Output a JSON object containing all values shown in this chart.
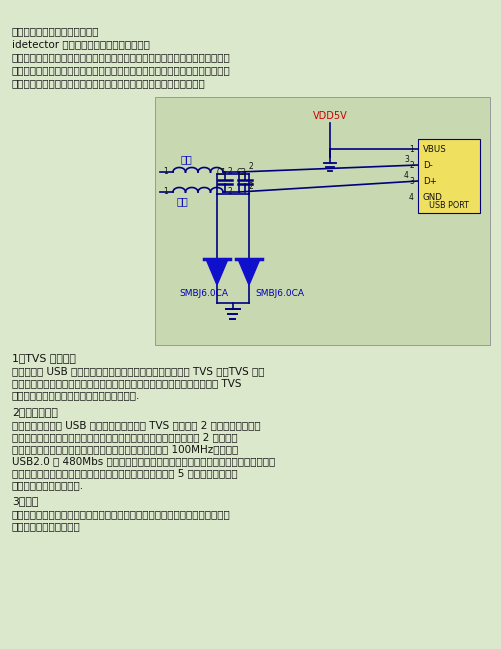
{
  "bg_color": "#dce8cc",
  "circuit_bg": "#c8d8b0",
  "vdd_color": "#cc0000",
  "usb_box_color": "#f0e060",
  "lc": "#000080",
  "tvs_color": "#1010cc",
  "label_color": "#0000bb",
  "text_color": "#111111",
  "title_line1": "大家来找茬，被误用的保护器件",
  "title_line2": "idetector 博客中的一篇好文，转了过来。",
  "intro_lines": [
    "以前公司小的时候，硬件开发工程师经验也不高，基本上产品是在裸奔。没有加",
    "任何防护。现在公司大了，工程师有了点经验了，却出现了另一种误用保护器件",
    "的情况。最近评审了一个原理图，这仅就保护器件来看看有哪些误用。"
  ],
  "s1_title": "1、TVS 管的误用",
  "s1_lines": [
    "上图是一个 USB 口的防护电路。这个电路中首先误用的就是 TVS 管。TVS 管作",
    "为一种防护器件被广泛应用于防止过电压保护。此处的的设计思想也是想用 TVS",
    "管来作为放静电的一种器件。但是这里用错了."
  ],
  "s2_title": "2、磁珠的误用",
  "s2_lines": [
    "还是看上面的那个 USB 口的防护电路图。在 TVS 后面还有 2 个磁珠。磁珠主要",
    "用于抑制高频干扰。但是当看到这个磁珠时，我们需要问设计者，这 2 个磁珠是",
    "什么型号的。得知型号后，发现这两个磁珠的谐振频率为 100MHz。那么在",
    "USB2.0 的 480Mbs 通讯时，这两个磁珠已经不再适用了。磁珠不是加了一定好，",
    "磁珠要根据要抑制的频率选择。其谐振频率一定要高于至少 5 倍工作频率。在这",
    "个基础上再看阻抗等参数."
  ],
  "s3_title": "3、电感",
  "s3_lines": [
    "说完磁珠说电感。电感最常见的误用就是不分功率电感和信号电感。在该使用功",
    "率电感的地方用了信号电"
  ]
}
